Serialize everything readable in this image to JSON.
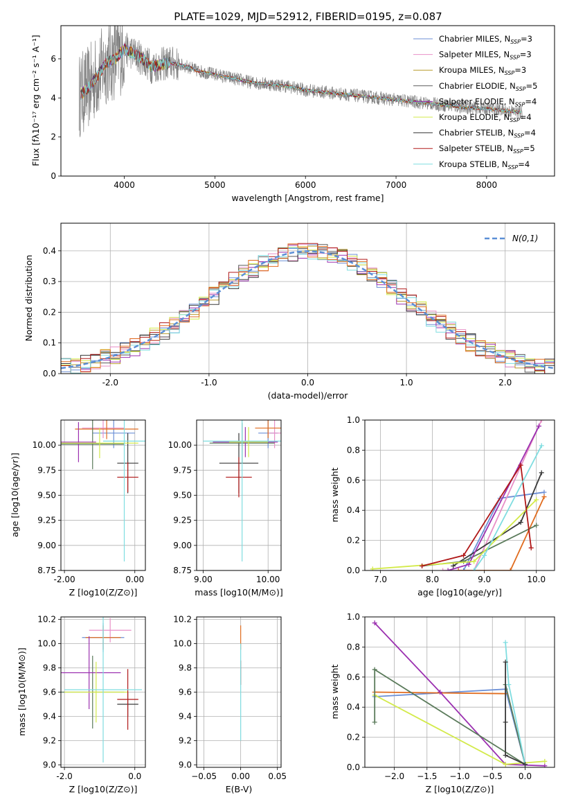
{
  "figure": {
    "title": "PLATE=1029, MJD=52912, FIBERID=0195, z=0.087"
  },
  "legend_spectrum": [
    {
      "name": "Chabrier MILES, N",
      "sub": "SSP",
      "tail": "=3",
      "color": "#6b8fd6"
    },
    {
      "name": "Salpeter MILES, N",
      "sub": "SSP",
      "tail": "=3",
      "color": "#e88fc7"
    },
    {
      "name": "Kroupa MILES, N",
      "sub": "SSP",
      "tail": "=3",
      "color": "#b89a2c"
    },
    {
      "name": "Chabrier ELODIE, N",
      "sub": "SSP",
      "tail": "=5",
      "color": "#5a5a5a"
    },
    {
      "name": "Salpeter ELODIE, N",
      "sub": "SSP",
      "tail": "=4",
      "color": "#9b30b0"
    },
    {
      "name": "Kroupa ELODIE, N",
      "sub": "SSP",
      "tail": "=4",
      "color": "#d3ea4a"
    },
    {
      "name": "Chabrier STELIB, N",
      "sub": "SSP",
      "tail": "=4",
      "color": "#3a3a3a"
    },
    {
      "name": "Salpeter STELIB, N",
      "sub": "SSP",
      "tail": "=5",
      "color": "#b01818"
    },
    {
      "name": "Kroupa STELIB, N",
      "sub": "SSP",
      "tail": "=4",
      "color": "#7fdde0"
    }
  ],
  "legend_hist": {
    "label": "N(0,1)"
  },
  "chart_data": [
    {
      "id": "spectrum",
      "type": "line",
      "title": "PLATE=1029, MJD=52912, FIBERID=0195, z=0.087",
      "xlabel": "wavelength [Angstrom, rest frame]",
      "ylabel": "Flux [fλ10⁻¹⁷ erg cm⁻² s⁻¹ A⁻¹]",
      "xlim": [
        3300,
        8750
      ],
      "ylim": [
        0,
        7.7
      ],
      "xticks": [
        4000,
        5000,
        6000,
        7000,
        8000
      ],
      "yticks": [
        0,
        2,
        4,
        6
      ],
      "data_color": "#808080",
      "model_x": [
        3500,
        3600,
        3700,
        3800,
        3900,
        4000,
        4100,
        4200,
        4300,
        4400,
        4500,
        4600,
        4700,
        4800,
        4900,
        5000,
        5200,
        5400,
        5600,
        5800,
        6000,
        6200,
        6400,
        6600,
        6800,
        7000,
        7200,
        7400,
        7600,
        7800,
        8000,
        8200,
        8400
      ],
      "model_y": [
        4.1,
        4.5,
        5.1,
        5.8,
        6.0,
        6.5,
        6.3,
        6.0,
        5.6,
        5.7,
        5.8,
        5.7,
        5.6,
        5.4,
        5.3,
        5.2,
        5.0,
        4.8,
        4.7,
        4.6,
        4.4,
        4.3,
        4.2,
        4.1,
        4.0,
        3.9,
        3.8,
        3.7,
        3.6,
        3.5,
        3.45,
        3.35,
        3.25
      ]
    },
    {
      "id": "residual-histogram",
      "type": "bar",
      "xlabel": "(data-model)/error",
      "ylabel": "Normed distribution",
      "xlim": [
        -2.5,
        2.5
      ],
      "ylim": [
        0,
        0.49
      ],
      "xticks": [
        -2,
        -1,
        0,
        1,
        2
      ],
      "yticks": [
        0.0,
        0.1,
        0.2,
        0.3,
        0.4
      ],
      "bin_width": 0.1,
      "reference_curve": "N(0,1)"
    },
    {
      "id": "age-vs-Z",
      "type": "scatter",
      "xlabel": "Z [log10(Z/Z⊙)]",
      "ylabel": "age [log10(age/yr)]",
      "xlim": [
        -2.1,
        0.3
      ],
      "ylim": [
        8.75,
        10.25
      ],
      "xticks": [
        -2,
        0
      ],
      "yticks": [
        8.75,
        9.0,
        9.25,
        9.5,
        9.75,
        10.0
      ],
      "points": [
        {
          "x": -0.6,
          "y": 10.12,
          "xerr": 0.6,
          "yerr": 0.15,
          "color": "#6b8fd6"
        },
        {
          "x": -0.9,
          "y": 10.17,
          "xerr": 0.6,
          "yerr": 0.1,
          "color": "#e88fc7"
        },
        {
          "x": -0.8,
          "y": 10.16,
          "xerr": 0.9,
          "yerr": 0.1,
          "color": "#e06c1f"
        },
        {
          "x": -0.2,
          "y": 9.82,
          "xerr": 0.3,
          "yerr": 0.3,
          "color": "#3a3a3a"
        },
        {
          "x": -1.2,
          "y": 10.01,
          "xerr": 0.9,
          "yerr": 0.25,
          "color": "#5a7a5a"
        },
        {
          "x": -1.6,
          "y": 10.03,
          "xerr": 0.5,
          "yerr": 0.2,
          "color": "#9b30b0"
        },
        {
          "x": -1.0,
          "y": 10.02,
          "xerr": 1.1,
          "yerr": 0.15,
          "color": "#d3ea4a"
        },
        {
          "x": -0.2,
          "y": 9.68,
          "xerr": 0.3,
          "yerr": 0.15,
          "color": "#b01818"
        },
        {
          "x": -0.3,
          "y": 10.04,
          "xerr": 0.6,
          "yerr": 1.2,
          "color": "#7fdde0"
        }
      ]
    },
    {
      "id": "age-vs-mass",
      "type": "scatter",
      "xlabel": "mass [log10(M/M⊙)]",
      "ylabel": "",
      "xlim": [
        8.9,
        10.2
      ],
      "ylim": [
        8.75,
        10.25
      ],
      "xticks": [
        9,
        10
      ],
      "yticks": [
        8.75,
        9.0,
        9.25,
        9.5,
        9.75,
        10.0
      ],
      "points": [
        {
          "x": 10.0,
          "y": 10.12,
          "xerr": 0.15,
          "yerr": 0.15,
          "color": "#6b8fd6"
        },
        {
          "x": 10.1,
          "y": 10.12,
          "xerr": 0.1,
          "yerr": 0.15,
          "color": "#e88fc7"
        },
        {
          "x": 10.0,
          "y": 10.17,
          "xerr": 0.2,
          "yerr": 0.1,
          "color": "#e06c1f"
        },
        {
          "x": 9.55,
          "y": 9.82,
          "xerr": 0.3,
          "yerr": 0.3,
          "color": "#3a3a3a"
        },
        {
          "x": 9.6,
          "y": 10.02,
          "xerr": 0.5,
          "yerr": 0.2,
          "color": "#5a7a5a"
        },
        {
          "x": 9.65,
          "y": 10.03,
          "xerr": 0.5,
          "yerr": 0.15,
          "color": "#9b30b0"
        },
        {
          "x": 9.7,
          "y": 10.03,
          "xerr": 0.3,
          "yerr": 0.15,
          "color": "#d3ea4a"
        },
        {
          "x": 9.55,
          "y": 9.68,
          "xerr": 0.2,
          "yerr": 0.2,
          "color": "#b01818"
        },
        {
          "x": 9.6,
          "y": 10.04,
          "xerr": 0.6,
          "yerr": 1.2,
          "color": "#7fdde0"
        }
      ]
    },
    {
      "id": "mass-weight-vs-age",
      "type": "line",
      "xlabel": "age [log10(age/yr)]",
      "ylabel": "mass weight",
      "xlim": [
        6.7,
        10.35
      ],
      "ylim": [
        0,
        1.0
      ],
      "xticks": [
        7,
        8,
        9,
        10
      ],
      "yticks": [
        0.0,
        0.2,
        0.4,
        0.6,
        0.8,
        1.0
      ],
      "series": [
        {
          "color": "#6b8fd6",
          "x": [
            8.6,
            9.3,
            10.15
          ],
          "y": [
            0.0,
            0.48,
            0.52
          ]
        },
        {
          "color": "#e88fc7",
          "x": [
            8.2,
            8.8,
            10.1
          ],
          "y": [
            0.0,
            0.0,
            1.0
          ]
        },
        {
          "color": "#e06c1f",
          "x": [
            8.5,
            9.5,
            10.15
          ],
          "y": [
            0.0,
            0.0,
            0.49
          ]
        },
        {
          "color": "#3a3a3a",
          "x": [
            8.4,
            9.7,
            10.1
          ],
          "y": [
            0.03,
            0.32,
            0.65
          ]
        },
        {
          "color": "#5a7a5a",
          "x": [
            7.8,
            8.6,
            10.0
          ],
          "y": [
            0.03,
            0.06,
            0.3
          ]
        },
        {
          "color": "#9b30b0",
          "x": [
            8.3,
            8.7,
            10.05
          ],
          "y": [
            0.0,
            0.04,
            0.96
          ]
        },
        {
          "color": "#d3ea4a",
          "x": [
            6.85,
            8.8,
            10.0
          ],
          "y": [
            0.01,
            0.06,
            0.47
          ]
        },
        {
          "color": "#b01818",
          "x": [
            7.8,
            8.6,
            9.7,
            9.9
          ],
          "y": [
            0.03,
            0.1,
            0.7,
            0.15
          ]
        },
        {
          "color": "#7fdde0",
          "x": [
            8.8,
            9.0,
            10.1
          ],
          "y": [
            0.0,
            0.1,
            0.83
          ]
        }
      ]
    },
    {
      "id": "mass-vs-Z",
      "type": "scatter",
      "xlabel": "Z [log10(Z/Z⊙)]",
      "ylabel": "mass [log10(M/M⊙)]",
      "xlim": [
        -2.1,
        0.3
      ],
      "ylim": [
        8.98,
        10.22
      ],
      "xticks": [
        -2,
        0
      ],
      "yticks": [
        9.0,
        9.2,
        9.4,
        9.6,
        9.8,
        10.0,
        10.2
      ],
      "points": [
        {
          "x": -0.9,
          "y": 10.05,
          "xerr": 0.6,
          "yerr": 0.12,
          "color": "#6b8fd6"
        },
        {
          "x": -0.7,
          "y": 10.11,
          "xerr": 0.6,
          "yerr": 0.1,
          "color": "#e88fc7"
        },
        {
          "x": -0.9,
          "y": 10.05,
          "xerr": 0.5,
          "yerr": 0.1,
          "color": "#e06c1f"
        },
        {
          "x": -0.2,
          "y": 9.5,
          "xerr": 0.3,
          "yerr": 0.1,
          "color": "#3a3a3a"
        },
        {
          "x": -1.2,
          "y": 9.6,
          "xerr": 0.9,
          "yerr": 0.3,
          "color": "#5a7a5a"
        },
        {
          "x": -1.3,
          "y": 9.76,
          "xerr": 0.9,
          "yerr": 0.3,
          "color": "#9b30b0"
        },
        {
          "x": -1.1,
          "y": 9.6,
          "xerr": 0.9,
          "yerr": 0.25,
          "color": "#d3ea4a"
        },
        {
          "x": -0.2,
          "y": 9.54,
          "xerr": 0.3,
          "yerr": 0.25,
          "color": "#b01818"
        },
        {
          "x": -0.9,
          "y": 9.62,
          "xerr": 1.1,
          "yerr": 0.6,
          "color": "#7fdde0"
        }
      ]
    },
    {
      "id": "mass-vs-ebv",
      "type": "scatter",
      "xlabel": "E(B-V)",
      "ylabel": "",
      "xlim": [
        -0.06,
        0.055
      ],
      "ylim": [
        8.98,
        10.22
      ],
      "xticks": [
        -0.05,
        0.0,
        0.05
      ],
      "yticks": [
        9.0,
        9.2,
        9.4,
        9.6,
        9.8,
        10.0,
        10.2
      ],
      "points": [
        {
          "x": 0.0,
          "y": 10.05,
          "xerr": 0,
          "yerr": 0.1,
          "color": "#e06c1f"
        },
        {
          "x": 0.0,
          "y": 9.76,
          "xerr": 0,
          "yerr": 0.1,
          "color": "#b01818"
        },
        {
          "x": 0.0,
          "y": 9.6,
          "xerr": 0,
          "yerr": 0.4,
          "color": "#7fdde0"
        }
      ]
    },
    {
      "id": "mass-weight-vs-Z",
      "type": "line",
      "xlabel": "Z [log10(Z/Z⊙)]",
      "ylabel": "mass weight",
      "xlim": [
        -2.45,
        0.45
      ],
      "ylim": [
        0,
        1.0
      ],
      "xticks": [
        -2.0,
        -1.5,
        -1.0,
        -0.5,
        0.0
      ],
      "yticks": [
        0.0,
        0.2,
        0.4,
        0.6,
        0.8,
        1.0
      ],
      "series": [
        {
          "color": "#6b8fd6",
          "x": [
            -2.3,
            -0.3,
            0.0
          ],
          "y": [
            0.47,
            0.52,
            0.02
          ]
        },
        {
          "color": "#e06c1f",
          "x": [
            -2.3,
            -0.3
          ],
          "y": [
            0.5,
            0.49
          ]
        },
        {
          "color": "#9b30b0",
          "x": [
            -2.3,
            -1.3,
            -0.3,
            0.3
          ],
          "y": [
            0.96,
            0.5,
            0.02,
            0.01
          ]
        },
        {
          "color": "#d3ea4a",
          "x": [
            -2.3,
            -0.3,
            0.3
          ],
          "y": [
            0.48,
            0.02,
            0.04
          ]
        },
        {
          "color": "#5a7a5a",
          "x": [
            -2.3,
            -2.3,
            0.0,
            -0.3
          ],
          "y": [
            0.3,
            0.65,
            0.02,
            0.55
          ]
        },
        {
          "color": "#7fdde0",
          "x": [
            -0.3,
            -0.25,
            0.0
          ],
          "y": [
            0.83,
            0.55,
            0.02
          ]
        },
        {
          "color": "#3a3a3a",
          "x": [
            -0.3,
            -0.3,
            -0.3,
            0.0
          ],
          "y": [
            0.7,
            0.3,
            0.08,
            0.02
          ]
        }
      ]
    }
  ]
}
